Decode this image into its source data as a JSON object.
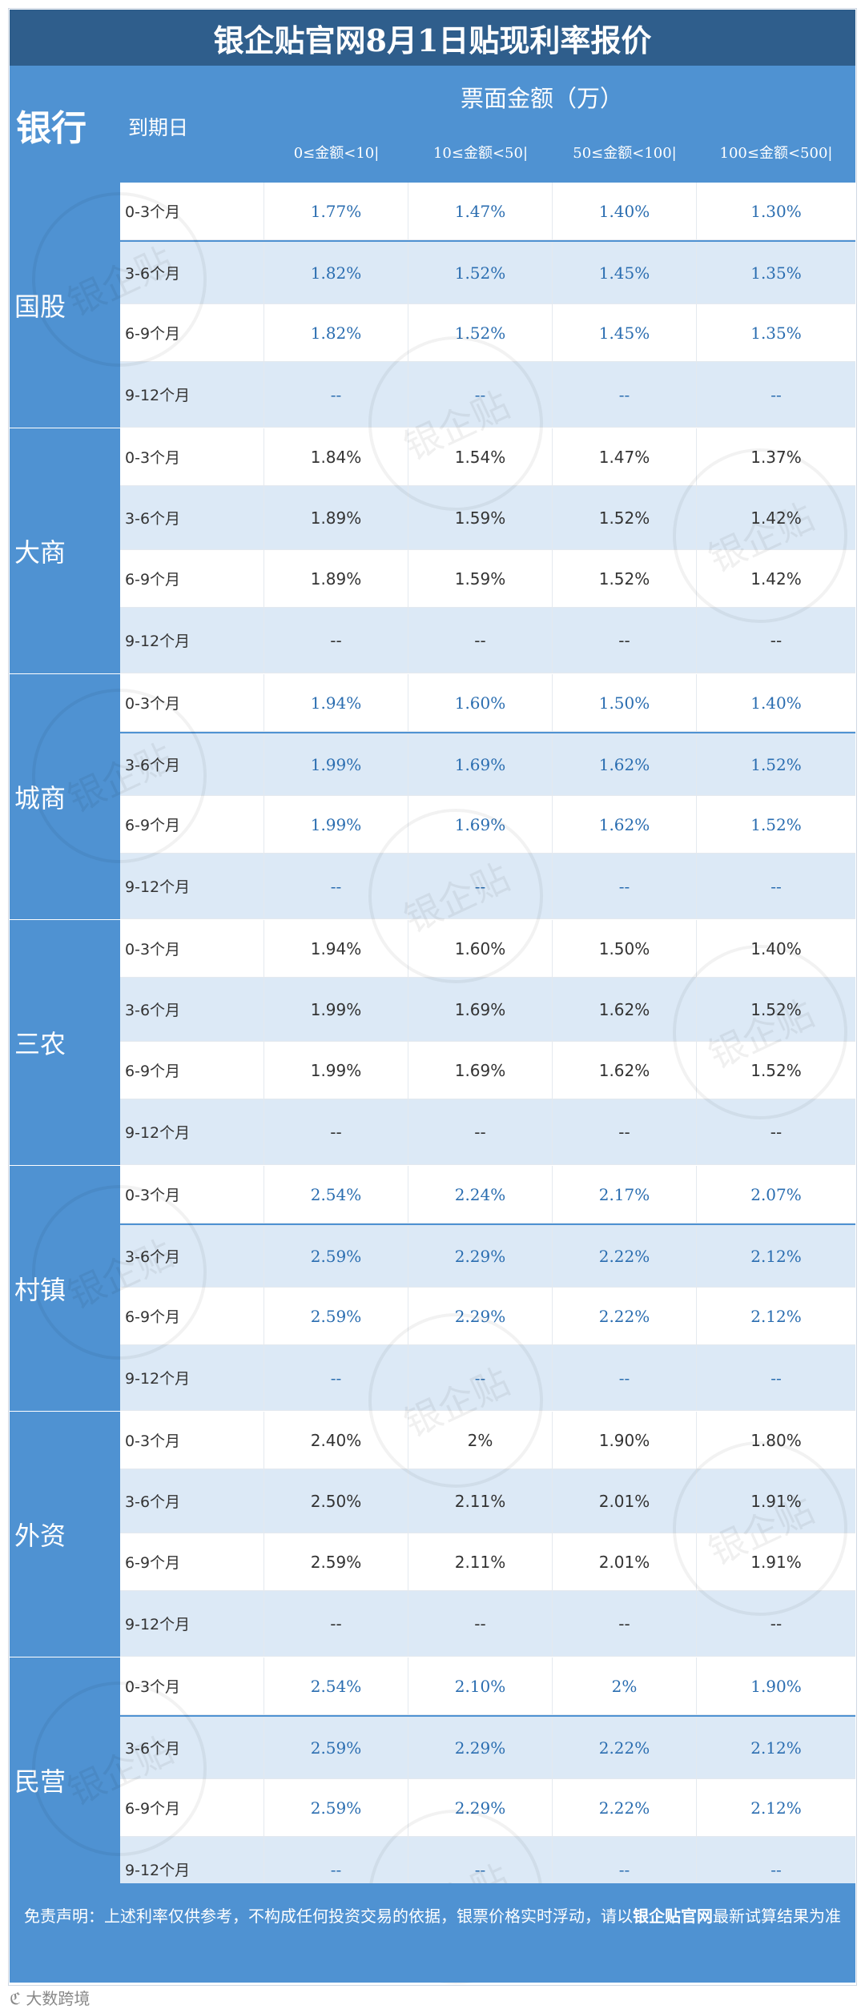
{
  "title": "银企贴官网8月1日贴现利率报价",
  "header": {
    "bank_label": "银行",
    "due_label": "到期日",
    "face_amount_label": "票面金额（万）",
    "ranges": [
      "0≤金额<10|",
      "10≤金额<50|",
      "50≤金额<100|",
      "100≤金额<500|"
    ]
  },
  "groups": [
    {
      "bank": "国股",
      "rows": [
        {
          "due": "0-3个月",
          "values": [
            "1.77%",
            "1.47%",
            "1.40%",
            "1.30%"
          ]
        },
        {
          "due": "3-6个月",
          "values": [
            "1.82%",
            "1.52%",
            "1.45%",
            "1.35%"
          ]
        },
        {
          "due": "6-9个月",
          "values": [
            "1.82%",
            "1.52%",
            "1.45%",
            "1.35%"
          ]
        },
        {
          "due": "9-12个月",
          "values": [
            "--",
            "--",
            "--",
            "--"
          ]
        }
      ]
    },
    {
      "bank": "大商",
      "rows": [
        {
          "due": "0-3个月",
          "values": [
            "1.84%",
            "1.54%",
            "1.47%",
            "1.37%"
          ]
        },
        {
          "due": "3-6个月",
          "values": [
            "1.89%",
            "1.59%",
            "1.52%",
            "1.42%"
          ]
        },
        {
          "due": "6-9个月",
          "values": [
            "1.89%",
            "1.59%",
            "1.52%",
            "1.42%"
          ]
        },
        {
          "due": "9-12个月",
          "values": [
            "--",
            "--",
            "--",
            "--"
          ]
        }
      ]
    },
    {
      "bank": "城商",
      "rows": [
        {
          "due": "0-3个月",
          "values": [
            "1.94%",
            "1.60%",
            "1.50%",
            "1.40%"
          ]
        },
        {
          "due": "3-6个月",
          "values": [
            "1.99%",
            "1.69%",
            "1.62%",
            "1.52%"
          ]
        },
        {
          "due": "6-9个月",
          "values": [
            "1.99%",
            "1.69%",
            "1.62%",
            "1.52%"
          ]
        },
        {
          "due": "9-12个月",
          "values": [
            "--",
            "--",
            "--",
            "--"
          ]
        }
      ]
    },
    {
      "bank": "三农",
      "rows": [
        {
          "due": "0-3个月",
          "values": [
            "1.94%",
            "1.60%",
            "1.50%",
            "1.40%"
          ]
        },
        {
          "due": "3-6个月",
          "values": [
            "1.99%",
            "1.69%",
            "1.62%",
            "1.52%"
          ]
        },
        {
          "due": "6-9个月",
          "values": [
            "1.99%",
            "1.69%",
            "1.62%",
            "1.52%"
          ]
        },
        {
          "due": "9-12个月",
          "values": [
            "--",
            "--",
            "--",
            "--"
          ]
        }
      ]
    },
    {
      "bank": "村镇",
      "rows": [
        {
          "due": "0-3个月",
          "values": [
            "2.54%",
            "2.24%",
            "2.17%",
            "2.07%"
          ]
        },
        {
          "due": "3-6个月",
          "values": [
            "2.59%",
            "2.29%",
            "2.22%",
            "2.12%"
          ]
        },
        {
          "due": "6-9个月",
          "values": [
            "2.59%",
            "2.29%",
            "2.22%",
            "2.12%"
          ]
        },
        {
          "due": "9-12个月",
          "values": [
            "--",
            "--",
            "--",
            "--"
          ]
        }
      ]
    },
    {
      "bank": "外资",
      "rows": [
        {
          "due": "0-3个月",
          "values": [
            "2.40%",
            "2%",
            "1.90%",
            "1.80%"
          ]
        },
        {
          "due": "3-6个月",
          "values": [
            "2.50%",
            "2.11%",
            "2.01%",
            "1.91%"
          ]
        },
        {
          "due": "6-9个月",
          "values": [
            "2.59%",
            "2.11%",
            "2.01%",
            "1.91%"
          ]
        },
        {
          "due": "9-12个月",
          "values": [
            "--",
            "--",
            "--",
            "--"
          ]
        }
      ]
    },
    {
      "bank": "民营",
      "rows": [
        {
          "due": "0-3个月",
          "values": [
            "2.54%",
            "2.10%",
            "2%",
            "1.90%"
          ]
        },
        {
          "due": "3-6个月",
          "values": [
            "2.59%",
            "2.29%",
            "2.22%",
            "2.12%"
          ]
        },
        {
          "due": "6-9个月",
          "values": [
            "2.59%",
            "2.29%",
            "2.22%",
            "2.12%"
          ]
        },
        {
          "due": "9-12个月",
          "values": [
            "--",
            "--",
            "--",
            "--"
          ]
        }
      ]
    }
  ],
  "footer": {
    "text_before": "免责声明：上述利率仅供参考，不构成任何投资交易的依据，银票价格实时浮动，请以",
    "text_bold": "银企贴官网",
    "text_after": "最新试算结果为准"
  },
  "source": "大数跨境",
  "watermark_text": "银企贴",
  "colors": {
    "title_bg": "#2f5e8c",
    "header_bg": "#4f92d2",
    "alt_row": "#dce9f6",
    "blue_text": "#2a6db0"
  }
}
